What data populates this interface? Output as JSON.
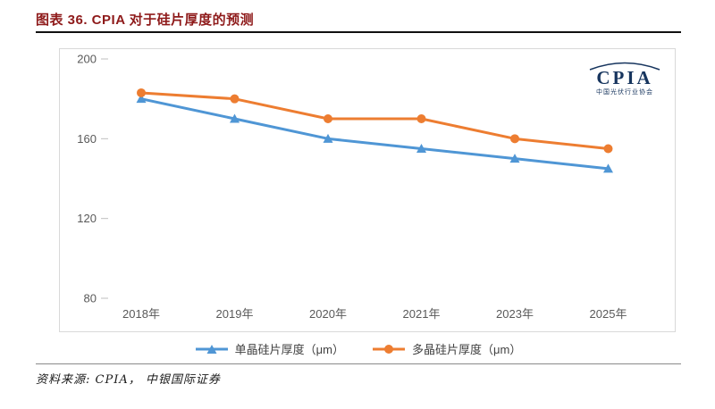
{
  "source": "资料来源: CPIA， 中银国际证券",
  "logo": {
    "name": "CPIA",
    "subtitle": "中国光伏行业协会"
  },
  "colors": {
    "mono_series": "#4f96d5",
    "poly_series": "#ed7d31",
    "title": "#8e1a1a",
    "axis_text": "#595959",
    "chart_border": "#d9d9d9"
  },
  "chart_data": {
    "type": "line",
    "title": "图表 36. CPIA 对于硅片厚度的预测",
    "categories": [
      "2018年",
      "2019年",
      "2020年",
      "2021年",
      "2023年",
      "2025年"
    ],
    "series": [
      {
        "name": "单晶硅片厚度（μm）",
        "color": "#4f96d5",
        "marker": "triangle",
        "values": [
          180,
          170,
          160,
          155,
          150,
          145
        ]
      },
      {
        "name": "多晶硅片厚度（μm）",
        "color": "#ed7d31",
        "marker": "circle",
        "values": [
          183,
          180,
          170,
          170,
          160,
          155
        ]
      }
    ],
    "xlabel": "",
    "ylabel": "",
    "ylim": [
      80,
      200
    ],
    "yticks": [
      200,
      160,
      120,
      80
    ],
    "grid": false,
    "legend_position": "bottom"
  }
}
